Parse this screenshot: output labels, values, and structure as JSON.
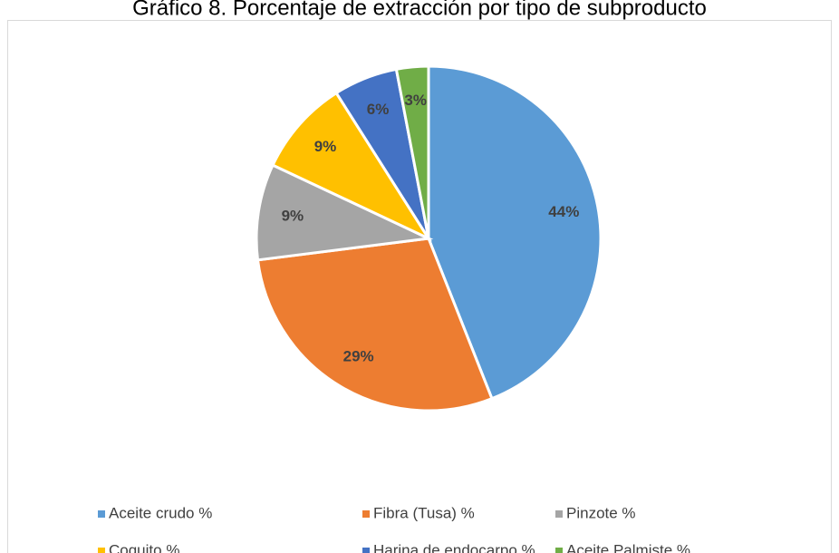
{
  "chart_data": {
    "type": "pie",
    "title": "Gráfico 8. Porcentaje de extracción por tipo de subproducto",
    "categories": [
      "Aceite crudo %",
      "Fibra (Tusa) %",
      "Pinzote %",
      "Coquito %",
      "Harina de endocarpo %",
      "Aceite Palmiste %"
    ],
    "values": [
      44,
      29,
      9,
      9,
      6,
      3
    ],
    "value_labels": [
      "44%",
      "29%",
      "9%",
      "9%",
      "6%",
      "3%"
    ],
    "colors": [
      "#5b9bd5",
      "#ed7d31",
      "#a5a5a5",
      "#ffc000",
      "#4472c4",
      "#70ad47"
    ],
    "legend": "bottom"
  }
}
